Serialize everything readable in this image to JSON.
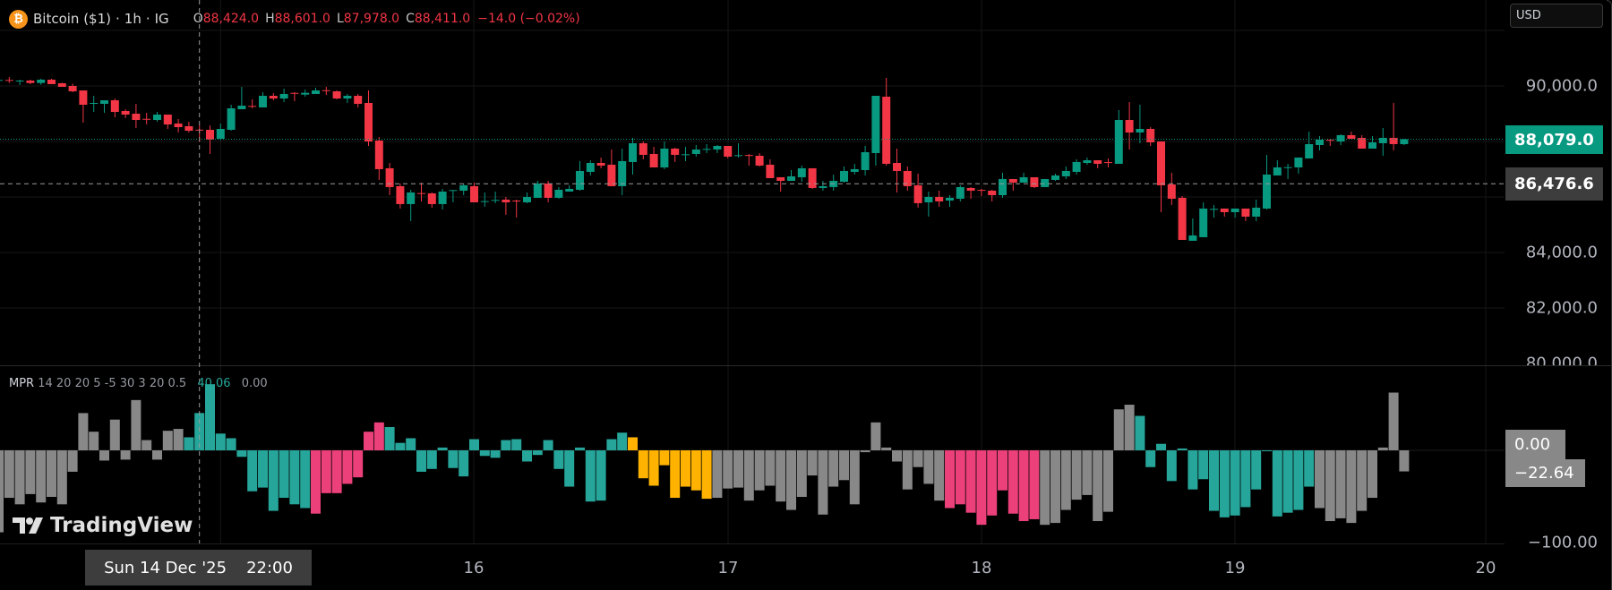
{
  "header": {
    "icon": "bitcoin-icon",
    "icon_glyph": "₿",
    "symbol": "Bitcoin ($1)",
    "interval": "1h",
    "exchange": "IG",
    "separator": "·",
    "ohlc": {
      "o_label": "O",
      "o": "88,424.0",
      "h_label": "H",
      "h": "88,601.0",
      "l_label": "L",
      "l": "87,978.0",
      "c_label": "C",
      "c": "88,411.0",
      "change": "−14.0 (−0.02%)"
    }
  },
  "currency_button": "USD",
  "price_axis": {
    "labels": [
      "90,000.0",
      "84,000.0",
      "82,000.0",
      "80,000.0"
    ],
    "last_price_tag": "88,079.0",
    "crosshair_price_tag": "86,476.6"
  },
  "indicator": {
    "name": "MPR",
    "params": "14 20 20 5 -5 30 3 20 0.5",
    "value1": "40.06",
    "value2": "0.00",
    "axis_label": "−100.00",
    "tags": [
      "0.00",
      "−22.64"
    ]
  },
  "time_axis": {
    "labels": [
      "16",
      "17",
      "18",
      "19",
      "20"
    ],
    "crosshair_date": "Sun 14 Dec '25",
    "crosshair_time": "22:00"
  },
  "branding": "TradingView",
  "colors": {
    "up": "#089981",
    "down": "#f23645",
    "mpr_neutral": "#888888",
    "mpr_bull": "#26a69a",
    "mpr_bear": "#ec407a",
    "mpr_warn": "#ffb300",
    "last_price_tag": "#089981",
    "crosshair_tag": "#3d3d3d"
  },
  "chart_data": [
    {
      "type": "candlestick",
      "title": "Bitcoin ($1) · 1h · IG",
      "ylim": [
        79700,
        92300
      ],
      "x_ticks": [
        "16",
        "17",
        "18",
        "19",
        "20"
      ],
      "last_price": 88079.0,
      "crosshair_price": 86476.6,
      "ohlc": [
        [
          90215,
          90226,
          90193,
          90215
        ],
        [
          90215,
          90322,
          90107,
          90205
        ],
        [
          90190,
          90226,
          90032,
          90193
        ],
        [
          90193,
          90226,
          90064,
          90107
        ],
        [
          90107,
          90258,
          90043,
          90226
        ],
        [
          90226,
          90258,
          90064,
          90064
        ],
        [
          90097,
          90118,
          89968,
          89968
        ],
        [
          90000,
          90086,
          89774,
          89806
        ],
        [
          89839,
          89839,
          88678,
          89323
        ],
        [
          89380,
          89645,
          89064,
          89387
        ],
        [
          89355,
          89484,
          89032,
          89484
        ],
        [
          89484,
          89548,
          88871,
          89064
        ],
        [
          89097,
          89161,
          88839,
          88968
        ],
        [
          89000,
          89355,
          88484,
          88774
        ],
        [
          88815,
          89032,
          88613,
          88807
        ],
        [
          88774,
          89064,
          88710,
          88968
        ],
        [
          88968,
          88968,
          88452,
          88613
        ],
        [
          88645,
          88807,
          88323,
          88516
        ],
        [
          88549,
          88710,
          88323,
          88387
        ],
        [
          88424,
          88601,
          87978,
          88411
        ],
        [
          88420,
          88581,
          87549,
          88065
        ],
        [
          88097,
          88645,
          88043,
          88452
        ],
        [
          88420,
          89323,
          88387,
          89194
        ],
        [
          89161,
          89968,
          89161,
          89290
        ],
        [
          89280,
          89516,
          89194,
          89269
        ],
        [
          89226,
          89774,
          89226,
          89645
        ],
        [
          89645,
          89742,
          89484,
          89548
        ],
        [
          89548,
          89903,
          89420,
          89710
        ],
        [
          89750,
          89774,
          89452,
          89742
        ],
        [
          89688,
          89871,
          89613,
          89753
        ],
        [
          89710,
          89935,
          89710,
          89839
        ],
        [
          89845,
          89968,
          89677,
          89839
        ],
        [
          89806,
          89839,
          89516,
          89548
        ],
        [
          89548,
          89710,
          89387,
          89645
        ],
        [
          89645,
          89710,
          89226,
          89355
        ],
        [
          89387,
          89839,
          87839,
          88000
        ],
        [
          88033,
          88161,
          86614,
          87001
        ],
        [
          87033,
          87226,
          86065,
          86356
        ],
        [
          86388,
          86485,
          85582,
          85743
        ],
        [
          85743,
          86259,
          85130,
          86162
        ],
        [
          86140,
          86517,
          85839,
          86130
        ],
        [
          86130,
          86162,
          85614,
          85743
        ],
        [
          85743,
          86291,
          85549,
          86194
        ],
        [
          86240,
          86248,
          85807,
          86248
        ],
        [
          86227,
          86485,
          86065,
          86420
        ],
        [
          86388,
          86517,
          85807,
          85807
        ],
        [
          85840,
          86162,
          85646,
          85850
        ],
        [
          85885,
          86194,
          85775,
          85893
        ],
        [
          85904,
          86001,
          85356,
          85807
        ],
        [
          85870,
          85904,
          85259,
          85861
        ],
        [
          85807,
          86162,
          85775,
          86001
        ],
        [
          85969,
          86581,
          85969,
          86485
        ],
        [
          86485,
          86581,
          85807,
          85969
        ],
        [
          85969,
          86356,
          85936,
          86259
        ],
        [
          86194,
          86420,
          86194,
          86291
        ],
        [
          86259,
          87291,
          86227,
          86936
        ],
        [
          86904,
          87323,
          86775,
          87226
        ],
        [
          87226,
          87420,
          87033,
          87130
        ],
        [
          87162,
          87710,
          86388,
          86388
        ],
        [
          86388,
          87742,
          86065,
          87291
        ],
        [
          87259,
          88129,
          86807,
          87936
        ],
        [
          87936,
          88000,
          87355,
          87517
        ],
        [
          87549,
          87807,
          87065,
          87065
        ],
        [
          87065,
          88000,
          87001,
          87742
        ],
        [
          87742,
          87775,
          87259,
          87517
        ],
        [
          87530,
          87807,
          87291,
          87538
        ],
        [
          87549,
          87871,
          87452,
          87710
        ],
        [
          87725,
          87904,
          87581,
          87732
        ],
        [
          87710,
          87871,
          87581,
          87839
        ],
        [
          87839,
          87839,
          87388,
          87452
        ],
        [
          87500,
          87936,
          87420,
          87506
        ],
        [
          87510,
          87549,
          87130,
          87500
        ],
        [
          87484,
          87581,
          87097,
          87130
        ],
        [
          87162,
          87355,
          86678,
          86678
        ],
        [
          86710,
          86710,
          86194,
          86581
        ],
        [
          86581,
          86968,
          86581,
          86743
        ],
        [
          86710,
          87130,
          86549,
          87033
        ],
        [
          87033,
          87033,
          86291,
          86324
        ],
        [
          86324,
          86581,
          86227,
          86388
        ],
        [
          86356,
          86807,
          86227,
          86581
        ],
        [
          86549,
          87097,
          86517,
          86936
        ],
        [
          86904,
          87194,
          86807,
          87001
        ],
        [
          86968,
          87839,
          86775,
          87613
        ],
        [
          87581,
          89645,
          87130,
          89645
        ],
        [
          89613,
          90290,
          87130,
          87194
        ],
        [
          87226,
          87742,
          86162,
          86936
        ],
        [
          86936,
          87097,
          86227,
          86388
        ],
        [
          86420,
          86839,
          85614,
          85775
        ],
        [
          85807,
          86194,
          85291,
          86001
        ],
        [
          86001,
          86227,
          85646,
          85839
        ],
        [
          85872,
          86065,
          85646,
          85969
        ],
        [
          85936,
          86420,
          85839,
          86356
        ],
        [
          86324,
          86356,
          85936,
          86227
        ],
        [
          86255,
          86291,
          86033,
          86248
        ],
        [
          86227,
          86259,
          85839,
          86065
        ],
        [
          86065,
          86872,
          85969,
          86646
        ],
        [
          86646,
          86646,
          86227,
          86517
        ],
        [
          86517,
          86872,
          86517,
          86710
        ],
        [
          86710,
          86710,
          86324,
          86356
        ],
        [
          86356,
          86646,
          86356,
          86646
        ],
        [
          86614,
          86839,
          86581,
          86775
        ],
        [
          86743,
          87097,
          86646,
          86936
        ],
        [
          86904,
          87355,
          86807,
          87259
        ],
        [
          87226,
          87420,
          87162,
          87323
        ],
        [
          87323,
          87323,
          87033,
          87194
        ],
        [
          87255,
          87388,
          87065,
          87248
        ],
        [
          87194,
          89129,
          87194,
          88774
        ],
        [
          88774,
          89420,
          87710,
          88323
        ],
        [
          88323,
          89323,
          87936,
          88452
        ],
        [
          88452,
          88516,
          87839,
          87968
        ],
        [
          88000,
          88000,
          85452,
          86420
        ],
        [
          86452,
          86872,
          85710,
          85936
        ],
        [
          85969,
          86033,
          84453,
          84453
        ],
        [
          84421,
          85227,
          84421,
          84614
        ],
        [
          84550,
          85807,
          84550,
          85582
        ],
        [
          85565,
          85710,
          85259,
          85571
        ],
        [
          85582,
          85582,
          85291,
          85452
        ],
        [
          85452,
          85582,
          85259,
          85582
        ],
        [
          85582,
          85582,
          85130,
          85291
        ],
        [
          85291,
          85904,
          85130,
          85614
        ],
        [
          85582,
          87517,
          85549,
          86807
        ],
        [
          86775,
          87323,
          86775,
          87065
        ],
        [
          87070,
          87194,
          86646,
          87076
        ],
        [
          87065,
          87420,
          86839,
          87420
        ],
        [
          87388,
          88355,
          87388,
          87904
        ],
        [
          87871,
          88194,
          87678,
          88065
        ],
        [
          88060,
          88097,
          87839,
          88054
        ],
        [
          88000,
          88258,
          87871,
          88226
        ],
        [
          88226,
          88355,
          88097,
          88097
        ],
        [
          88129,
          88226,
          87742,
          87742
        ],
        [
          87742,
          88194,
          87742,
          87968
        ],
        [
          87936,
          88484,
          87484,
          88129
        ],
        [
          88129,
          89387,
          87678,
          87904
        ],
        [
          87904,
          88097,
          87871,
          88079
        ]
      ]
    },
    {
      "type": "bar",
      "title": "MPR 14 20 20 5 -5 30 3 20 0.5",
      "ylim": [
        -100,
        75
      ],
      "values": [
        -88,
        -51,
        -58,
        -47,
        -56,
        -50,
        -58,
        -23,
        40,
        20,
        -11,
        33,
        -10,
        54,
        11,
        -10,
        21,
        23,
        14,
        40.06,
        71,
        18,
        13,
        -7,
        -44,
        -40,
        -65,
        -51,
        -58,
        -62,
        -68,
        -46,
        -46,
        -36,
        -29,
        20,
        30,
        25,
        8,
        13,
        -23,
        -20,
        3,
        -19,
        -28,
        12,
        -6,
        -8,
        11,
        12,
        -12,
        -5,
        11,
        -20,
        -39,
        3,
        -55,
        -54,
        12,
        19,
        14,
        -30,
        -38,
        -16,
        -51,
        -39,
        -43,
        -52,
        -51,
        -41,
        -40,
        -54,
        -43,
        -38,
        -55,
        -64,
        -50,
        -27,
        -69,
        -39,
        -32,
        -58,
        -2,
        30,
        3,
        -12,
        -42,
        -18,
        -36,
        -54,
        -62,
        -58,
        -67,
        -80,
        -70,
        -43,
        -68,
        -76,
        -74,
        -80,
        -78,
        -64,
        -53,
        -48,
        -76,
        -66,
        44,
        49,
        37,
        -18,
        7,
        -33,
        2,
        -42,
        -31,
        -65,
        -72,
        -70,
        -61,
        -42,
        -1,
        -71,
        -67,
        -64,
        -39,
        -62,
        -76,
        -73,
        -78,
        -65,
        -51,
        3,
        62,
        -22.64
      ],
      "color_segments": [
        [
          "neutral",
          18
        ],
        [
          "bull",
          12
        ],
        [
          "bear",
          7
        ],
        [
          "bull",
          23
        ],
        [
          "warn",
          8
        ],
        [
          "neutral",
          22
        ],
        [
          "bear",
          9
        ],
        [
          "neutral",
          9
        ],
        [
          "bull",
          17
        ],
        [
          "neutral",
          9
        ]
      ]
    }
  ]
}
